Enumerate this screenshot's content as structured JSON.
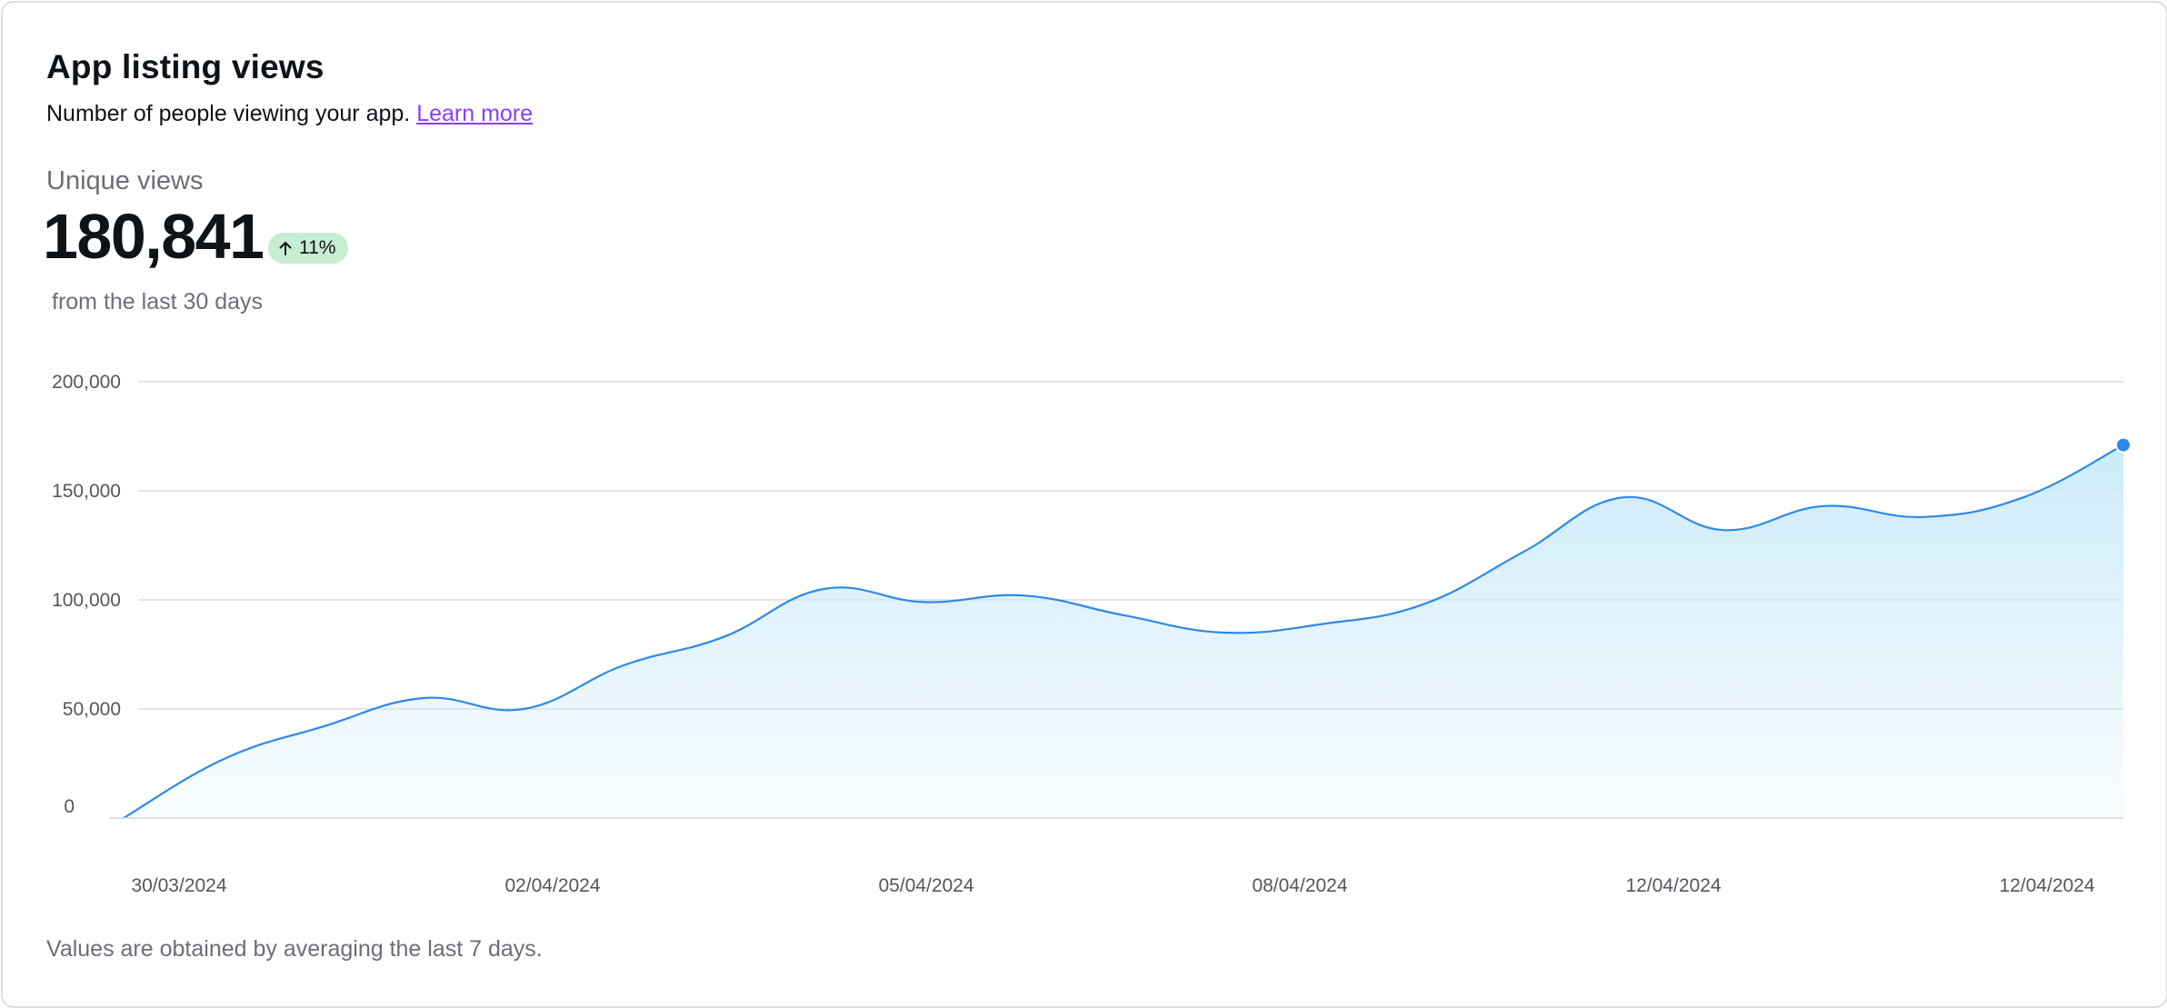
{
  "header": {
    "title": "App listing views",
    "subtitle": "Number of people viewing your app.",
    "learn_more": "Learn more"
  },
  "metric": {
    "label": "Unique views",
    "value": "180,841",
    "change": "11%",
    "change_direction": "up",
    "period": "from the last 30 days"
  },
  "footnote": "Values are obtained by averaging the last 7 days.",
  "colors": {
    "line": "#2e8ae6",
    "area_top": "#cdebf9",
    "badge_bg": "#c6ecd1",
    "link": "#8b3dff"
  },
  "chart_data": {
    "type": "area",
    "title": "",
    "xlabel": "",
    "ylabel": "",
    "ylim": [
      0,
      200000
    ],
    "yticks": [
      0,
      50000,
      100000,
      150000,
      200000
    ],
    "ytick_labels": [
      "0",
      "50,000",
      "100,000",
      "150,000",
      "200,000"
    ],
    "xtick_labels": [
      "30/03/2024",
      "02/04/2024",
      "05/04/2024",
      "08/04/2024",
      "12/04/2024",
      "12/04/2024"
    ],
    "grid": true,
    "series": [
      {
        "values": [
          0,
          27000,
          42000,
          55000,
          50000,
          70000,
          83000,
          105000,
          99000,
          102000,
          93000,
          85000,
          89000,
          98000,
          122000,
          147000,
          132000,
          143000,
          138000,
          147000,
          171000
        ]
      }
    ],
    "highlight_last_point": true
  }
}
